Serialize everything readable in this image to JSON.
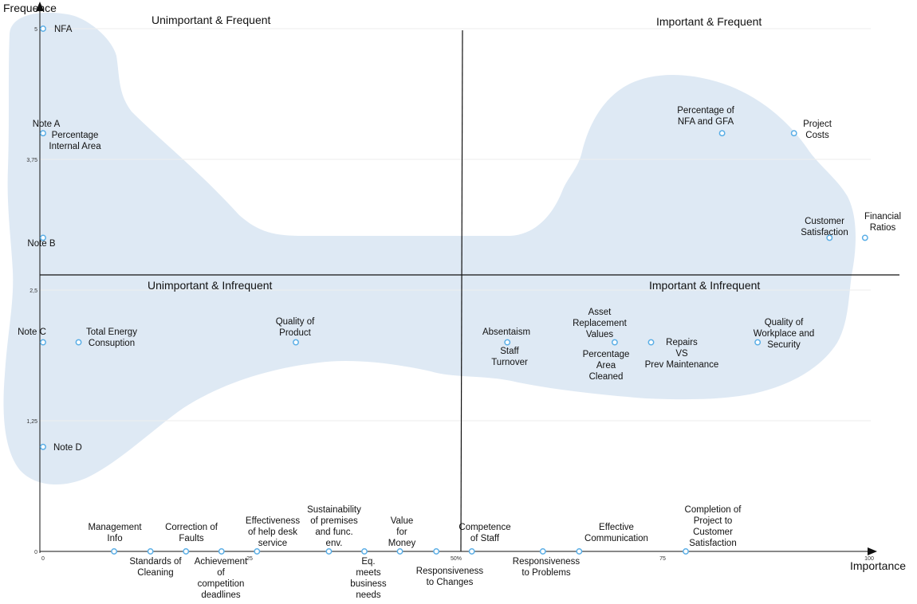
{
  "chart_data": {
    "type": "scatter",
    "title": "",
    "xlabel": "Importance",
    "ylabel": "Frequence",
    "xlim": [
      0,
      100
    ],
    "ylim": [
      0,
      5
    ],
    "x_ticks": [
      "0",
      "25",
      "50%",
      "75",
      "100"
    ],
    "y_ticks": [
      "0",
      "1,25",
      "2,5",
      "3,75",
      "5"
    ],
    "grid": "horizontal",
    "highlight_color": "#dce8f3",
    "marker_color": "#5aaee6",
    "quadrants": {
      "top_left": "Unimportant  & Frequent",
      "top_right": "Important  & Frequent",
      "bottom_left": "Unimportant  & Infrequent",
      "bottom_right": "Important  & Infrequent"
    },
    "points": [
      {
        "label": [
          "NFA"
        ],
        "x": 0,
        "y": 5
      },
      {
        "label": [
          "Note A",
          "Percentage",
          "Internal Area"
        ],
        "x": 0,
        "y": 4
      },
      {
        "label": [
          "Note B"
        ],
        "x": 0,
        "y": 3
      },
      {
        "label": [
          "Note C"
        ],
        "x": 0,
        "y": 2
      },
      {
        "label": [
          "Total Energy",
          "Consuption"
        ],
        "x": 4.3,
        "y": 2
      },
      {
        "label": [
          "Note D"
        ],
        "x": 0,
        "y": 1
      },
      {
        "label": [
          "Quality of",
          "Product"
        ],
        "x": 30.6,
        "y": 2
      },
      {
        "label": [
          "Percentage of",
          "NFA and GFA"
        ],
        "x": 82.2,
        "y": 4
      },
      {
        "label": [
          "Project",
          "Costs"
        ],
        "x": 90.9,
        "y": 4
      },
      {
        "label": [
          "Customer",
          "Satisfaction"
        ],
        "x": 95.2,
        "y": 3
      },
      {
        "label": [
          "Financial",
          "Ratios"
        ],
        "x": 99.5,
        "y": 3
      },
      {
        "label": [
          "Absentaism",
          "Staff",
          "Turnover"
        ],
        "x": 56.2,
        "y": 2
      },
      {
        "label": [
          "Asset",
          "Replacement",
          "Values",
          "Percentage",
          "Area",
          "Cleaned"
        ],
        "x": 69.2,
        "y": 2
      },
      {
        "label": [
          "Repairs",
          "VS",
          "Prev Maintenance"
        ],
        "x": 73.6,
        "y": 2
      },
      {
        "label": [
          "Quality of",
          "Workplace and",
          "Security"
        ],
        "x": 86.5,
        "y": 2
      },
      {
        "label": [
          "Management",
          "Info"
        ],
        "x": 8.6,
        "y": 0
      },
      {
        "label": [
          "Standards of",
          "Cleaning"
        ],
        "x": 13,
        "y": 0
      },
      {
        "label": [
          "Correction of",
          "Faults"
        ],
        "x": 17.3,
        "y": 0
      },
      {
        "label": [
          "Achievement",
          "of",
          "competition",
          "deadlines"
        ],
        "x": 21.6,
        "y": 0
      },
      {
        "label": [
          "Effectiveness",
          "of help desk",
          "service"
        ],
        "x": 25.9,
        "y": 0
      },
      {
        "label": [
          "Sustainability",
          "of premises",
          "and func.",
          "env."
        ],
        "x": 34.6,
        "y": 0
      },
      {
        "label": [
          "Eq.",
          "meets",
          "business",
          "needs"
        ],
        "x": 38.9,
        "y": 0
      },
      {
        "label": [
          "Value",
          "for",
          "Money"
        ],
        "x": 43.2,
        "y": 0
      },
      {
        "label": [
          "Responsiveness",
          "to Changes"
        ],
        "x": 47.6,
        "y": 0
      },
      {
        "label": [
          "Competence",
          "of Staff"
        ],
        "x": 51.9,
        "y": 0
      },
      {
        "label": [
          "Responsiveness",
          "to Problems"
        ],
        "x": 60.5,
        "y": 0
      },
      {
        "label": [
          "Effective",
          "Communication"
        ],
        "x": 64.9,
        "y": 0
      },
      {
        "label": [
          "Completion of",
          "Project to",
          "Customer",
          "Satisfaction"
        ],
        "x": 77.8,
        "y": 0
      }
    ]
  }
}
